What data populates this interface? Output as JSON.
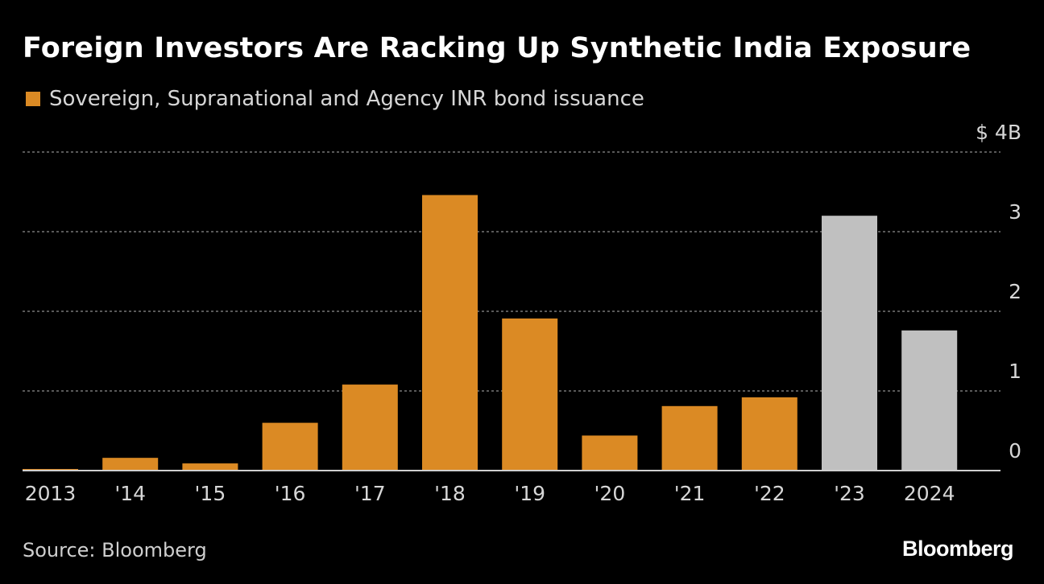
{
  "chart_data": {
    "type": "bar",
    "title": "Foreign Investors Are Racking Up Synthetic India Exposure",
    "legend": [
      {
        "name": "Sovereign, Supranational and Agency INR bond issuance",
        "color": "#DB8A24"
      }
    ],
    "categories": [
      "2013",
      "'14",
      "'15",
      "'16",
      "'17",
      "'18",
      "'19",
      "'20",
      "'21",
      "'22",
      "'23",
      "2024"
    ],
    "values": [
      0.01,
      0.16,
      0.09,
      0.6,
      1.08,
      3.46,
      1.91,
      0.44,
      0.81,
      0.92,
      3.2,
      1.76
    ],
    "bar_colors": [
      "#DB8A24",
      "#DB8A24",
      "#DB8A24",
      "#DB8A24",
      "#DB8A24",
      "#DB8A24",
      "#DB8A24",
      "#DB8A24",
      "#DB8A24",
      "#DB8A24",
      "#C0C0C0",
      "#C0C0C0"
    ],
    "ylim": [
      0,
      4
    ],
    "y_ticks": [
      "0",
      "1",
      "2",
      "3",
      "$ 4B"
    ],
    "y_axis_position": "right",
    "grid": true,
    "legend_placement": "top-left",
    "source": "Source: Bloomberg",
    "logo": "Bloomberg"
  }
}
